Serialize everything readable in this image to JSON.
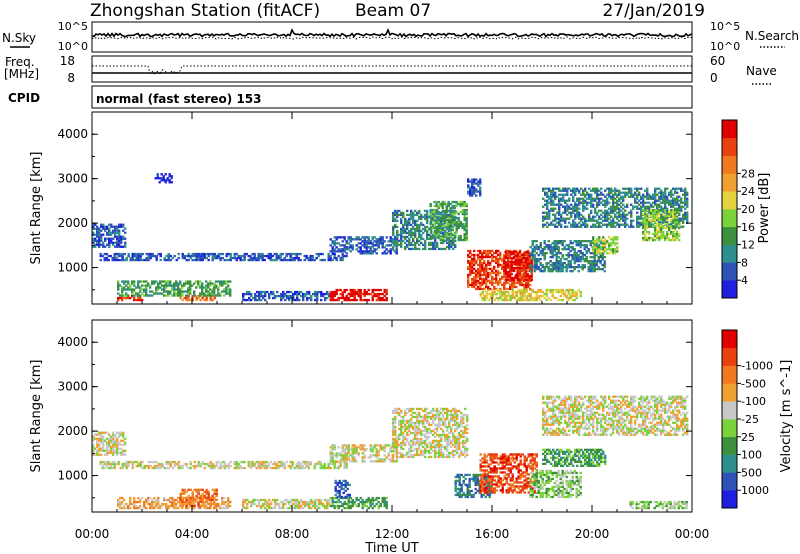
{
  "header": {
    "station": "Zhongshan Station (fitACF)",
    "beam": "Beam 07",
    "date": "27/Jan/2019"
  },
  "top_panels": {
    "nsky_label": "N.Sky",
    "nsearch_label": "N.Search",
    "freq_label": "Freq.",
    "freq_unit": "[MHz]",
    "cpid_label": "CPID",
    "nave_label": "Nave",
    "noise_ticks_left": [
      "10^5",
      "10^0"
    ],
    "noise_ticks_right": [
      "10^5",
      "10^0"
    ],
    "freq_ticks": [
      "18",
      "8"
    ],
    "nave_ticks": [
      "60",
      "0"
    ],
    "cpid_text": "normal (fast stereo) 153"
  },
  "chart_data": [
    {
      "type": "heatmap",
      "name": "power",
      "ylabel": "Slant Range [km]",
      "xlabel": "Time UT",
      "xlim_hours": [
        0,
        24
      ],
      "ylim": [
        180,
        4500
      ],
      "x_ticks": [
        "00:00",
        "04:00",
        "08:00",
        "12:00",
        "16:00",
        "20:00",
        "00:00"
      ],
      "x_tick_hours": [
        0,
        4,
        8,
        12,
        16,
        20,
        24
      ],
      "y_ticks": [
        1000,
        2000,
        3000,
        4000
      ],
      "colorbar": {
        "label": "Power [dB]",
        "tick_labels": [
          "4",
          "8",
          "12",
          "16",
          "20",
          "24",
          "28"
        ],
        "colors": [
          "#1f1fe0",
          "#2e52b8",
          "#2f8f8f",
          "#3c8f3c",
          "#7cd23c",
          "#e6d23c",
          "#f0a030",
          "#f07820",
          "#e84010",
          "#e00000"
        ]
      },
      "regions": [
        {
          "t": [
            0.0,
            1.3
          ],
          "r": [
            1450,
            1950
          ],
          "level": 1
        },
        {
          "t": [
            0.3,
            10.2
          ],
          "r": [
            1150,
            1300
          ],
          "level": 1
        },
        {
          "t": [
            1.0,
            2.0
          ],
          "r": [
            250,
            380
          ],
          "level": 8
        },
        {
          "t": [
            3.5,
            5.0
          ],
          "r": [
            250,
            380
          ],
          "level": 7
        },
        {
          "t": [
            1.0,
            5.5
          ],
          "r": [
            350,
            700
          ],
          "level": 3
        },
        {
          "t": [
            6.0,
            9.5
          ],
          "r": [
            250,
            450
          ],
          "level": 1
        },
        {
          "t": [
            9.5,
            11.8
          ],
          "r": [
            250,
            500
          ],
          "level": 9
        },
        {
          "t": [
            9.5,
            12.2
          ],
          "r": [
            1300,
            1700
          ],
          "level": 1
        },
        {
          "t": [
            12.0,
            14.5
          ],
          "r": [
            1400,
            2300
          ],
          "level": 2
        },
        {
          "t": [
            13.5,
            15.0
          ],
          "r": [
            1600,
            2500
          ],
          "level": 3
        },
        {
          "t": [
            15.0,
            17.5
          ],
          "r": [
            500,
            1400
          ],
          "level": 8
        },
        {
          "t": [
            16.5,
            17.6
          ],
          "r": [
            700,
            1350
          ],
          "level": 9
        },
        {
          "t": [
            15.5,
            19.5
          ],
          "r": [
            250,
            500
          ],
          "level": 5
        },
        {
          "t": [
            17.5,
            20.5
          ],
          "r": [
            900,
            1600
          ],
          "level": 2
        },
        {
          "t": [
            20.0,
            21.0
          ],
          "r": [
            1300,
            1700
          ],
          "level": 4
        },
        {
          "t": [
            18.0,
            23.8
          ],
          "r": [
            1900,
            2800
          ],
          "level": 2
        },
        {
          "t": [
            22.0,
            23.5
          ],
          "r": [
            1600,
            2300
          ],
          "level": 4
        },
        {
          "t": [
            15.0,
            15.5
          ],
          "r": [
            2600,
            3000
          ],
          "level": 1
        },
        {
          "t": [
            2.5,
            3.2
          ],
          "r": [
            2900,
            3100
          ],
          "level": 0
        }
      ]
    },
    {
      "type": "heatmap",
      "name": "velocity",
      "ylabel": "Slant Range [km]",
      "xlabel": "Time UT",
      "xlim_hours": [
        0,
        24
      ],
      "ylim": [
        180,
        4500
      ],
      "x_ticks": [
        "00:00",
        "04:00",
        "08:00",
        "12:00",
        "16:00",
        "20:00",
        "00:00"
      ],
      "x_tick_hours": [
        0,
        4,
        8,
        12,
        16,
        20,
        24
      ],
      "y_ticks": [
        1000,
        2000,
        3000,
        4000
      ],
      "colorbar": {
        "label": "Velocity [m s^-1]",
        "tick_labels": [
          "1000",
          "500",
          "100",
          "25",
          "-25",
          "-100",
          "-500",
          "-1000"
        ],
        "colors": [
          "#1f1fe0",
          "#2e52b8",
          "#2f8f8f",
          "#3c8f3c",
          "#7cd23c",
          "#c8c8c8",
          "#f0a030",
          "#f07820",
          "#e84010",
          "#e00000"
        ]
      },
      "regions": [
        {
          "t": [
            0.0,
            1.3
          ],
          "r": [
            1450,
            1950
          ],
          "level": 5
        },
        {
          "t": [
            0.3,
            10.2
          ],
          "r": [
            1150,
            1300
          ],
          "level": 5
        },
        {
          "t": [
            1.0,
            5.5
          ],
          "r": [
            250,
            500
          ],
          "level": 6
        },
        {
          "t": [
            3.5,
            5.0
          ],
          "r": [
            300,
            700
          ],
          "level": 7
        },
        {
          "t": [
            6.0,
            9.5
          ],
          "r": [
            250,
            450
          ],
          "level": 5
        },
        {
          "t": [
            9.5,
            11.8
          ],
          "r": [
            250,
            500
          ],
          "level": 3
        },
        {
          "t": [
            9.7,
            10.3
          ],
          "r": [
            500,
            900
          ],
          "level": 1
        },
        {
          "t": [
            9.5,
            12.2
          ],
          "r": [
            1300,
            1700
          ],
          "level": 5
        },
        {
          "t": [
            12.0,
            15.0
          ],
          "r": [
            1400,
            2500
          ],
          "level": 5
        },
        {
          "t": [
            14.5,
            16.0
          ],
          "r": [
            500,
            1000
          ],
          "level": 2
        },
        {
          "t": [
            15.5,
            17.8
          ],
          "r": [
            600,
            1500
          ],
          "level": 8
        },
        {
          "t": [
            17.5,
            19.5
          ],
          "r": [
            500,
            1100
          ],
          "level": 4
        },
        {
          "t": [
            18.0,
            20.5
          ],
          "r": [
            1200,
            1600
          ],
          "level": 3
        },
        {
          "t": [
            18.0,
            23.8
          ],
          "r": [
            1900,
            2800
          ],
          "level": 5
        },
        {
          "t": [
            21.5,
            23.8
          ],
          "r": [
            250,
            400
          ],
          "level": 4
        }
      ]
    }
  ]
}
